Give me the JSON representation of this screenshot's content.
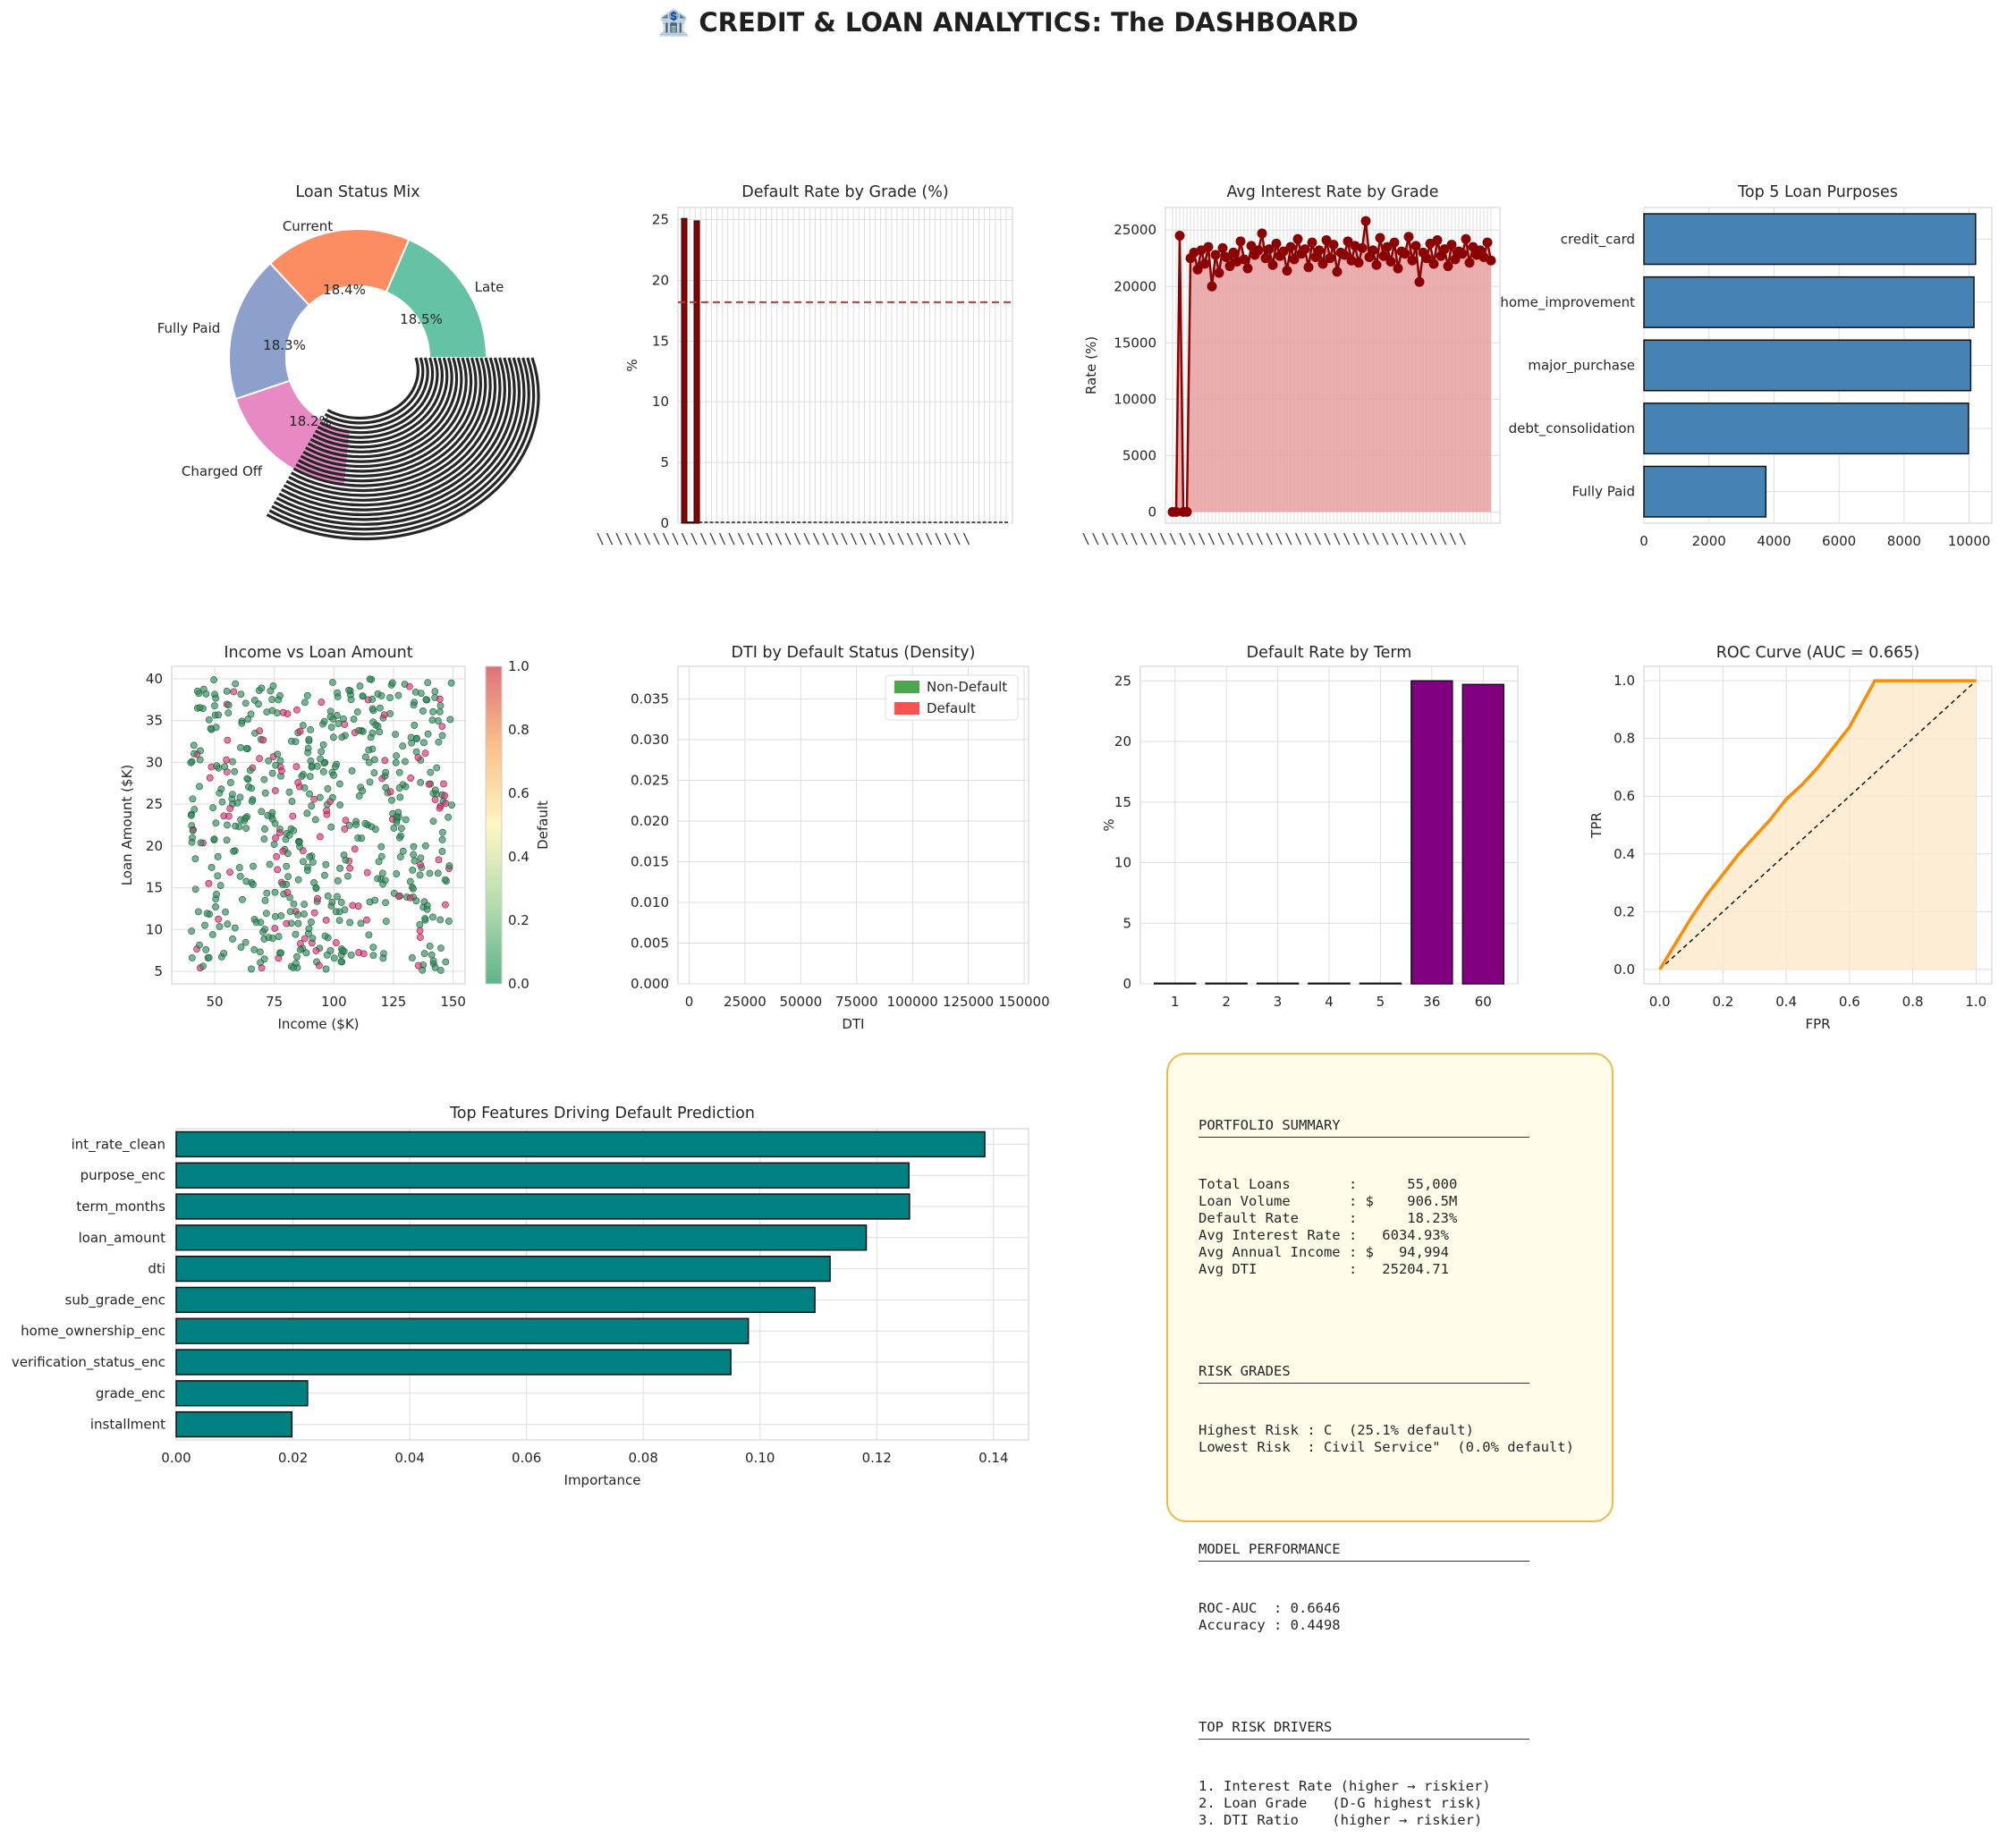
{
  "title": "🏦 CREDIT & LOAN ANALYTICS: The DASHBOARD",
  "chart_data": [
    {
      "id": "loan-status",
      "type": "pie",
      "title": "Loan Status Mix",
      "labels": [
        "Late",
        "Current",
        "Fully Paid",
        "Charged Off"
      ],
      "values": [
        18.5,
        18.4,
        18.3,
        18.2
      ],
      "pct_labels": [
        "18.5%",
        "18.4%",
        "18.3%",
        "18.2%"
      ],
      "colors": [
        "#66c2a5",
        "#fc8d62",
        "#8da0cb",
        "#e78ac3"
      ],
      "donut": true
    },
    {
      "id": "default-grade",
      "type": "bar",
      "title": "Default Rate by Grade (%)",
      "ylabel": "%",
      "ylim": [
        0,
        26
      ],
      "yticks": [
        0,
        5,
        10,
        15,
        20,
        25
      ],
      "category_count": 60,
      "visible_values": [
        25.1,
        0.1,
        24.9
      ],
      "reference_line": 18.2,
      "reference_color": "#c0392b",
      "bar_color": "#8b0000"
    },
    {
      "id": "interest-grade",
      "type": "line",
      "title": "Avg Interest Rate by Grade",
      "ylabel": "Rate (%)",
      "ylim": [
        -1000,
        27000
      ],
      "yticks": [
        0,
        5000,
        10000,
        15000,
        20000,
        25000
      ],
      "values": [
        0,
        0,
        24500,
        0,
        0,
        22500,
        23000,
        21500,
        23200,
        22000,
        23500,
        20000,
        22800,
        21200,
        23400,
        22600,
        21800,
        23000,
        22200,
        24000,
        22400,
        21600,
        23600,
        22800,
        23200,
        24700,
        22500,
        23300,
        21900,
        23800,
        22700,
        23100,
        21400,
        23500,
        22400,
        24200,
        22900,
        23300,
        21700,
        23900,
        22600,
        23200,
        22000,
        24100,
        22500,
        23700,
        21300,
        23000,
        22800,
        24000,
        22300,
        23600,
        22100,
        23400,
        25800,
        22600,
        23200,
        21900,
        24300,
        22700,
        23500,
        22200,
        23900,
        21600,
        23100,
        22900,
        24400,
        22300,
        23600,
        20400,
        23000,
        22500,
        23800,
        22000,
        24100,
        22700,
        23300,
        21800,
        23700,
        22400,
        23100,
        22900,
        24200,
        22100,
        23500,
        22800,
        23200,
        22600,
        23900,
        22300
      ],
      "line_color": "#8b0000",
      "fill_color": "#e8a1a1"
    },
    {
      "id": "loan-purposes",
      "type": "bar",
      "orientation": "horizontal",
      "title": "Top 5 Loan Purposes",
      "categories": [
        "credit_card",
        "home_improvement",
        "major_purchase",
        "debt_consolidation",
        "Fully Paid"
      ],
      "values": [
        10200,
        10150,
        10050,
        9980,
        3750
      ],
      "xlim": [
        0,
        10700
      ],
      "xticks": [
        0,
        2000,
        4000,
        6000,
        8000,
        10000
      ],
      "bar_color": "#4682b4"
    },
    {
      "id": "income-loan",
      "type": "scatter",
      "title": "Income vs Loan Amount",
      "xlabel": "Income ($K)",
      "ylabel": "Loan Amount ($K)",
      "xlim": [
        32,
        155
      ],
      "ylim": [
        3.5,
        41.5
      ],
      "xticks": [
        50,
        75,
        100,
        125,
        150
      ],
      "yticks": [
        5,
        10,
        15,
        20,
        25,
        30,
        35,
        40
      ],
      "point_count": 600,
      "default_share": 0.18,
      "colorbar": {
        "label": "Default",
        "ticks": [
          "0.0",
          "0.2",
          "0.4",
          "0.6",
          "0.8",
          "1.0"
        ]
      }
    },
    {
      "id": "dti-density",
      "type": "area",
      "title": "DTI by Default Status (Density)",
      "xlabel": "DTI",
      "xlim": [
        -5000,
        152000
      ],
      "ylim": [
        0,
        0.039
      ],
      "xticks": [
        0,
        25000,
        50000,
        75000,
        100000,
        125000,
        150000
      ],
      "yticks": [
        "0.000",
        "0.005",
        "0.010",
        "0.015",
        "0.020",
        "0.025",
        "0.030",
        "0.035"
      ],
      "series": [
        {
          "name": "Non-Default",
          "color": "#4ca64c"
        },
        {
          "name": "Default",
          "color": "#ff5050"
        }
      ]
    },
    {
      "id": "default-term",
      "type": "bar",
      "title": "Default Rate by Term",
      "ylabel": "%",
      "categories": [
        "1",
        "2",
        "3",
        "4",
        "5",
        "36",
        "60"
      ],
      "values": [
        0.05,
        0.05,
        0.05,
        0.05,
        0.05,
        25.0,
        24.7
      ],
      "ylim": [
        0,
        26.2
      ],
      "yticks": [
        0,
        5,
        10,
        15,
        20,
        25
      ],
      "bar_color": "#800080"
    },
    {
      "id": "roc",
      "type": "line",
      "title": "ROC Curve (AUC = 0.665)",
      "xlabel": "FPR",
      "ylabel": "TPR",
      "xlim": [
        -0.05,
        1.05
      ],
      "ylim": [
        -0.05,
        1.05
      ],
      "ticks": [
        "0.0",
        "0.2",
        "0.4",
        "0.6",
        "0.8",
        "1.0"
      ],
      "x": [
        0.0,
        0.05,
        0.1,
        0.15,
        0.2,
        0.25,
        0.3,
        0.35,
        0.4,
        0.45,
        0.5,
        0.55,
        0.6,
        0.65,
        0.68,
        0.75,
        0.85,
        1.0
      ],
      "y": [
        0.0,
        0.09,
        0.18,
        0.26,
        0.33,
        0.4,
        0.46,
        0.52,
        0.59,
        0.64,
        0.7,
        0.77,
        0.84,
        0.94,
        1.0,
        1.0,
        1.0,
        1.0
      ],
      "line_color": "#ff8c00",
      "fill_color": "#fde9c9"
    },
    {
      "id": "features",
      "type": "bar",
      "orientation": "horizontal",
      "title": "Top Features Driving Default Prediction",
      "xlabel": "Importance",
      "categories": [
        "int_rate_clean",
        "purpose_enc",
        "term_months",
        "loan_amount",
        "dti",
        "sub_grade_enc",
        "home_ownership_enc",
        "verification_status_enc",
        "grade_enc",
        "installment"
      ],
      "values": [
        0.1385,
        0.1255,
        0.1256,
        0.1182,
        0.112,
        0.1094,
        0.098,
        0.095,
        0.0225,
        0.0198
      ],
      "xlim": [
        0,
        0.146
      ],
      "xticks": [
        "0.00",
        "0.02",
        "0.04",
        "0.06",
        "0.08",
        "0.10",
        "0.12",
        "0.14"
      ],
      "bar_color": "#008080"
    }
  ],
  "summary": {
    "portfolio_head": "PORTFOLIO SUMMARY",
    "portfolio_lines": "Total Loans       :      55,000\nLoan Volume       : $    906.5M\nDefault Rate      :      18.23%\nAvg Interest Rate :   6034.93%\nAvg Annual Income : $   94,994\nAvg DTI           :   25204.71",
    "risk_head": "RISK GRADES",
    "risk_lines": "Highest Risk : C  (25.1% default)\nLowest Risk  : Civil Service\"  (0.0% default)",
    "model_head": "MODEL PERFORMANCE",
    "model_lines": "ROC-AUC  : 0.6646\nAccuracy : 0.4498",
    "drivers_head": "TOP RISK DRIVERS",
    "drivers_lines": "1. Interest Rate (higher → riskier)\n2. Loan Grade   (D-G highest risk)\n3. DTI Ratio    (higher → riskier)"
  }
}
